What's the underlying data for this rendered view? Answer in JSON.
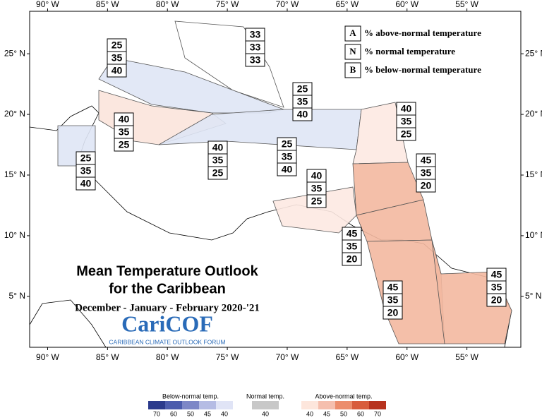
{
  "map": {
    "title_lines": [
      "Mean Temperature Outlook",
      "for the Caribbean"
    ],
    "subtitle": "December - January - February 2020-'21",
    "logo": {
      "name": "CariCOF",
      "tagline": "CARIBBEAN CLIMATE OUTLOOK FORUM"
    },
    "key": [
      {
        "letter": "A",
        "text": "% above-normal temperature"
      },
      {
        "letter": "N",
        "text": "% normal temperature"
      },
      {
        "letter": "B",
        "text": "% below-normal temperature"
      }
    ],
    "xlim": [
      -91.5,
      -50.5
    ],
    "ylim": [
      0.8,
      28.5
    ],
    "xticks": [
      {
        "value": -90,
        "label": "90° W"
      },
      {
        "value": -85,
        "label": "85° W"
      },
      {
        "value": -80,
        "label": "80° W"
      },
      {
        "value": -75,
        "label": "75° W"
      },
      {
        "value": -70,
        "label": "70° W"
      },
      {
        "value": -65,
        "label": "65° W"
      },
      {
        "value": -60,
        "label": "60° W"
      },
      {
        "value": -55,
        "label": "55° W"
      }
    ],
    "yticks": [
      {
        "value": 25,
        "label": "25° N"
      },
      {
        "value": 20,
        "label": "20° N"
      },
      {
        "value": 15,
        "label": "15° N"
      },
      {
        "value": 10,
        "label": "10° N"
      },
      {
        "value": 5,
        "label": "5° N"
      }
    ],
    "regions": [
      {
        "color": "#ffffff"
      },
      {
        "color": "#dfe5f5"
      },
      {
        "color": "#fbe4dc"
      },
      {
        "color": "#dfe5f5"
      },
      {
        "color": "#dfe5f5"
      },
      {
        "color": "#fde9e2"
      },
      {
        "color": "#f3b8a0"
      },
      {
        "color": "#f3b8a0"
      },
      {
        "color": "#fde9e2"
      },
      {
        "color": "#f3b8a0"
      },
      {
        "color": "#f3b8a0"
      }
    ],
    "boxes": [
      [
        25,
        35,
        40
      ],
      [
        33,
        33,
        33
      ],
      [
        25,
        35,
        40
      ],
      [
        40,
        35,
        25
      ],
      [
        25,
        35,
        40
      ],
      [
        40,
        35,
        25
      ],
      [
        25,
        35,
        40
      ],
      [
        40,
        35,
        25
      ],
      [
        45,
        35,
        20
      ],
      [
        40,
        35,
        25
      ],
      [
        45,
        35,
        20
      ],
      [
        45,
        35,
        20
      ],
      [
        45,
        35,
        20
      ]
    ],
    "scale": [
      {
        "title": "Below-normal temp.",
        "colors": [
          "#2b3a8c",
          "#4c5cad",
          "#7d87c7",
          "#b5bce4",
          "#e0e4f6"
        ],
        "labels": [
          70,
          60,
          50,
          45,
          40
        ]
      },
      {
        "title": "Normal temp.",
        "colors": [
          "#c8c8c8"
        ],
        "labels": [
          40
        ]
      },
      {
        "title": "Above-normal temp.",
        "colors": [
          "#fde6dc",
          "#f5bfae",
          "#ec8d6c",
          "#d85c3c",
          "#b7321e"
        ],
        "labels": [
          40,
          45,
          50,
          60,
          70
        ]
      }
    ]
  }
}
